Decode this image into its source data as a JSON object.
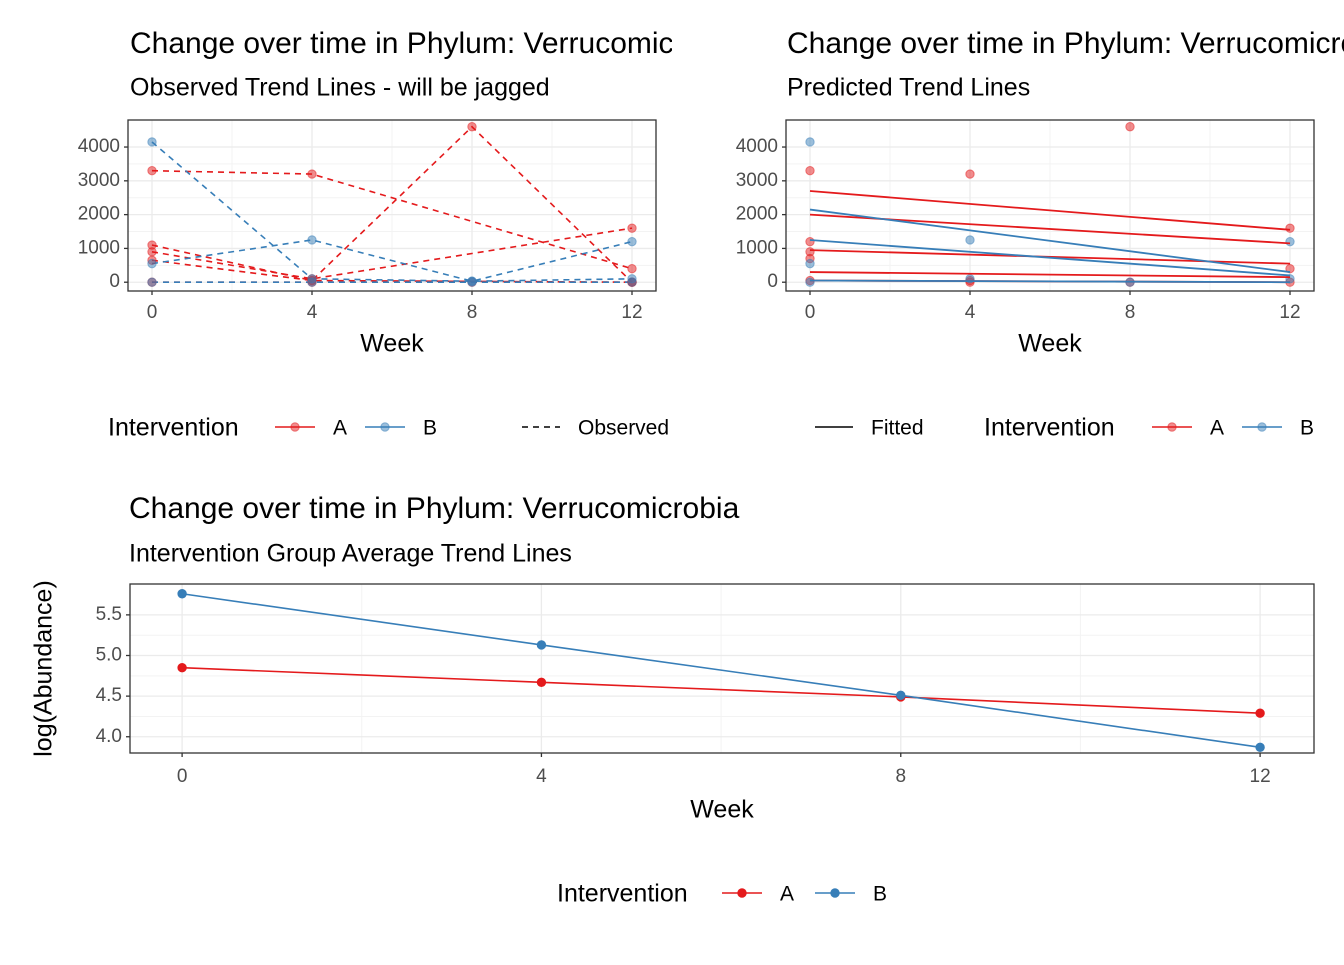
{
  "chart_data": [
    {
      "type": "line",
      "title": "Change over time in Phylum: Verrucomicrobia",
      "subtitle": "Observed Trend Lines - will be jagged",
      "xlabel": "Week",
      "xlim": [
        -0.6,
        12.6
      ],
      "xticks": [
        0,
        4,
        8,
        12
      ],
      "ylim": [
        -260,
        4800
      ],
      "yticks": [
        0,
        1000,
        2000,
        3000,
        4000
      ],
      "grid": true,
      "dashed": true,
      "point_opacity": 0.5,
      "series": [
        {
          "color": "#e41a1c",
          "x": [
            0,
            4,
            12
          ],
          "values": [
            3300,
            3200,
            400
          ]
        },
        {
          "color": "#e41a1c",
          "x": [
            0,
            4,
            8,
            12
          ],
          "values": [
            1100,
            50,
            4600,
            0
          ]
        },
        {
          "color": "#e41a1c",
          "x": [
            0,
            4,
            12
          ],
          "values": [
            900,
            100,
            1600
          ]
        },
        {
          "color": "#e41a1c",
          "x": [
            0,
            4,
            12
          ],
          "values": [
            650,
            50,
            0
          ]
        },
        {
          "color": "#e41a1c",
          "x": [
            0,
            4,
            8,
            12
          ],
          "values": [
            0,
            0,
            0,
            0
          ]
        },
        {
          "color": "#377eb8",
          "x": [
            0,
            4,
            8,
            12
          ],
          "values": [
            4150,
            100,
            30,
            100
          ]
        },
        {
          "color": "#377eb8",
          "x": [
            0,
            4,
            8,
            12
          ],
          "values": [
            550,
            1250,
            30,
            1200
          ]
        },
        {
          "color": "#377eb8",
          "x": [
            0,
            4,
            8,
            12
          ],
          "values": [
            0,
            0,
            0,
            0
          ]
        }
      ],
      "legend": {
        "title": "Intervention",
        "items": [
          {
            "label": "A",
            "color": "#e41a1c"
          },
          {
            "label": "B",
            "color": "#377eb8"
          }
        ]
      },
      "linetype_legend": "Observed"
    },
    {
      "type": "scatter",
      "title": "Change over time in Phylum: Verrucomicrobia",
      "subtitle": "Predicted Trend Lines",
      "xlabel": "Week",
      "xlim": [
        -0.6,
        12.6
      ],
      "xticks": [
        0,
        4,
        8,
        12
      ],
      "ylim": [
        -260,
        4800
      ],
      "yticks": [
        0,
        1000,
        2000,
        3000,
        4000
      ],
      "grid": true,
      "dashed": false,
      "point_opacity": 0.5,
      "series": [
        {
          "color": "#e41a1c",
          "x": [
            0,
            0,
            0,
            0,
            0,
            4,
            4,
            4,
            8,
            8,
            12,
            12,
            12
          ],
          "values": [
            3300,
            1200,
            900,
            700,
            50,
            3200,
            50,
            0,
            4600,
            0,
            1600,
            400,
            0
          ]
        },
        {
          "color": "#377eb8",
          "x": [
            0,
            0,
            0,
            4,
            4,
            8,
            12,
            12
          ],
          "values": [
            4150,
            550,
            0,
            1250,
            100,
            0,
            1200,
            100
          ]
        }
      ],
      "fitted": [
        {
          "color": "#e41a1c",
          "x": [
            0,
            12
          ],
          "values": [
            2700,
            1550
          ]
        },
        {
          "color": "#e41a1c",
          "x": [
            0,
            12
          ],
          "values": [
            2000,
            1150
          ]
        },
        {
          "color": "#e41a1c",
          "x": [
            0,
            12
          ],
          "values": [
            950,
            550
          ]
        },
        {
          "color": "#e41a1c",
          "x": [
            0,
            12
          ],
          "values": [
            300,
            150
          ]
        },
        {
          "color": "#e41a1c",
          "x": [
            0,
            12
          ],
          "values": [
            50,
            0
          ]
        },
        {
          "color": "#377eb8",
          "x": [
            0,
            12
          ],
          "values": [
            2150,
            300
          ]
        },
        {
          "color": "#377eb8",
          "x": [
            0,
            12
          ],
          "values": [
            1250,
            200
          ]
        },
        {
          "color": "#377eb8",
          "x": [
            0,
            12
          ],
          "values": [
            50,
            0
          ]
        }
      ],
      "legend": {
        "title": "Intervention",
        "items": [
          {
            "label": "A",
            "color": "#e41a1c"
          },
          {
            "label": "B",
            "color": "#377eb8"
          }
        ]
      },
      "linetype_legend": "Fitted"
    },
    {
      "type": "line",
      "title": "Change over time in Phylum: Verrucomicrobia",
      "subtitle": "Intervention Group Average Trend Lines",
      "xlabel": "Week",
      "ylabel": "log(Abundance)",
      "xlim": [
        -0.58,
        12.6
      ],
      "xticks": [
        0,
        4,
        8,
        12
      ],
      "ylim": [
        3.8,
        5.88
      ],
      "yticks": [
        {
          "value": 4,
          "label": "4.0"
        },
        4.5,
        {
          "value": 5,
          "label": "5.0"
        },
        5.5
      ],
      "grid": true,
      "dashed": false,
      "point_opacity": 1,
      "series": [
        {
          "name": "A",
          "color": "#e41a1c",
          "x": [
            0,
            4,
            8,
            12
          ],
          "values": [
            4.85,
            4.67,
            4.49,
            4.29
          ]
        },
        {
          "name": "B",
          "color": "#377eb8",
          "x": [
            0,
            4,
            8,
            12
          ],
          "values": [
            5.76,
            5.13,
            4.51,
            3.87
          ]
        }
      ],
      "legend_title": "Intervention"
    }
  ]
}
